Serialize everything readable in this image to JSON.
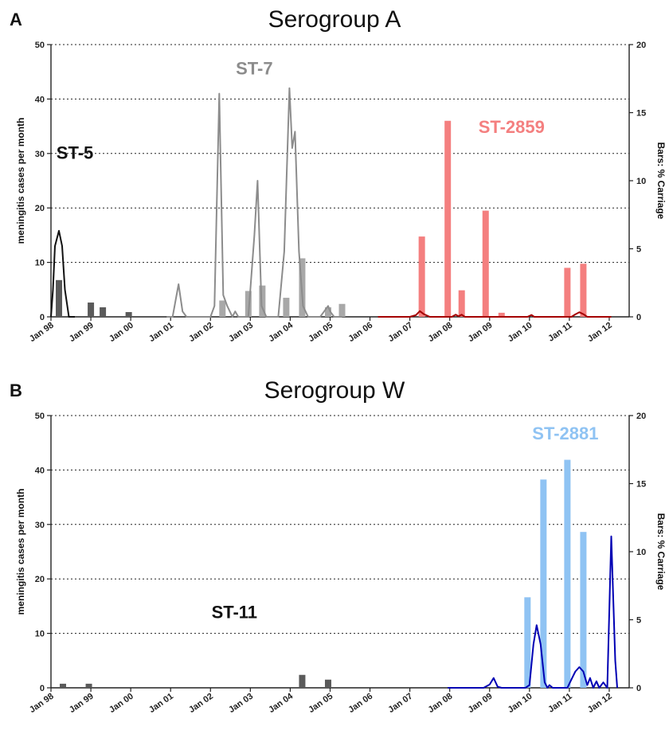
{
  "chart_data": [
    {
      "type": "bar",
      "panel": "A",
      "title": "Serogroup A",
      "ylabel": "meningitis cases per month",
      "y2label": "Bars: % Carriage",
      "ylim": [
        0,
        50
      ],
      "y2lim": [
        0,
        20
      ],
      "yticks": [
        "0",
        "10",
        "20",
        "30",
        "40",
        "50"
      ],
      "y2ticks": [
        "0",
        "5",
        "10",
        "15",
        "20"
      ],
      "xticks": [
        "Jan 98",
        "Jan 99",
        "Jan 00",
        "Jan 01",
        "Jan 02",
        "Jan 03",
        "Jan 04",
        "Jan 05",
        "Jan 06",
        "Jan 07",
        "Jan 08",
        "Jan 09",
        "Jan 10",
        "Jan 11",
        "Jan 12"
      ],
      "grid": true,
      "annotations": [
        {
          "text": "ST-5",
          "x": 1998.6,
          "y": 29,
          "color": "#111111"
        },
        {
          "text": "ST-7",
          "x": 2003.1,
          "y": 44.5,
          "color": "#8c8c8c"
        },
        {
          "text": "ST-2859",
          "x": 2009.55,
          "y": 33.8,
          "color": "#f47f7f"
        }
      ],
      "bars": [
        {
          "x": 1998.2,
          "value": 2.7,
          "color": "#5a5a5a"
        },
        {
          "x": 1999.0,
          "value": 1.05,
          "color": "#5a5a5a"
        },
        {
          "x": 1999.3,
          "value": 0.7,
          "color": "#5a5a5a"
        },
        {
          "x": 1999.95,
          "value": 0.35,
          "color": "#5a5a5a"
        },
        {
          "x": 2002.3,
          "value": 1.2,
          "color": "#a8a8a8"
        },
        {
          "x": 2002.95,
          "value": 1.9,
          "color": "#a8a8a8"
        },
        {
          "x": 2003.3,
          "value": 2.3,
          "color": "#a8a8a8"
        },
        {
          "x": 2003.9,
          "value": 1.4,
          "color": "#a8a8a8"
        },
        {
          "x": 2004.3,
          "value": 4.3,
          "color": "#a8a8a8"
        },
        {
          "x": 2004.95,
          "value": 0.7,
          "color": "#a8a8a8"
        },
        {
          "x": 2005.3,
          "value": 0.95,
          "color": "#a8a8a8"
        },
        {
          "x": 2007.3,
          "value": 5.9,
          "color": "#f47f7f"
        },
        {
          "x": 2007.95,
          "value": 14.4,
          "color": "#f47f7f"
        },
        {
          "x": 2008.3,
          "value": 1.95,
          "color": "#f47f7f"
        },
        {
          "x": 2008.9,
          "value": 7.8,
          "color": "#f47f7f"
        },
        {
          "x": 2009.3,
          "value": 0.3,
          "color": "#f47f7f"
        },
        {
          "x": 2010.95,
          "value": 3.6,
          "color": "#f47f7f"
        },
        {
          "x": 2011.35,
          "value": 3.9,
          "color": "#f47f7f"
        }
      ],
      "series": [
        {
          "color": "#111111",
          "points": [
            [
              1998.0,
              0
            ],
            [
              1998.05,
              5
            ],
            [
              1998.1,
              13
            ],
            [
              1998.2,
              15.8
            ],
            [
              1998.28,
              13
            ],
            [
              1998.35,
              5
            ],
            [
              1998.45,
              0
            ],
            [
              1998.6,
              0
            ]
          ]
        },
        {
          "color": "#8c8c8c",
          "points": [
            [
              2000.9,
              0
            ],
            [
              2001.05,
              0
            ],
            [
              2001.2,
              6
            ],
            [
              2001.3,
              1
            ],
            [
              2001.4,
              0
            ],
            [
              2002.0,
              0
            ],
            [
              2002.1,
              2
            ],
            [
              2002.22,
              41
            ],
            [
              2002.32,
              4
            ],
            [
              2002.42,
              2
            ],
            [
              2002.55,
              0
            ],
            [
              2002.62,
              1
            ],
            [
              2002.7,
              0
            ],
            [
              2002.95,
              0
            ],
            [
              2003.1,
              15
            ],
            [
              2003.18,
              25
            ],
            [
              2003.28,
              2
            ],
            [
              2003.4,
              0
            ],
            [
              2003.7,
              0
            ],
            [
              2003.85,
              12
            ],
            [
              2003.98,
              42
            ],
            [
              2004.05,
              31
            ],
            [
              2004.12,
              34
            ],
            [
              2004.22,
              12
            ],
            [
              2004.32,
              2
            ],
            [
              2004.45,
              0
            ],
            [
              2004.75,
              0
            ],
            [
              2004.85,
              1
            ],
            [
              2004.95,
              2
            ],
            [
              2005.0,
              1
            ],
            [
              2005.1,
              0
            ],
            [
              2005.3,
              0
            ]
          ]
        },
        {
          "color": "#a50000",
          "points": [
            [
              2006.2,
              0
            ],
            [
              2007.0,
              0
            ],
            [
              2007.15,
              0.3
            ],
            [
              2007.25,
              1.05
            ],
            [
              2007.35,
              0.5
            ],
            [
              2007.5,
              0
            ],
            [
              2008.05,
              0
            ],
            [
              2008.15,
              0.4
            ],
            [
              2008.22,
              0.1
            ],
            [
              2008.3,
              0.4
            ],
            [
              2008.38,
              0
            ],
            [
              2009.95,
              0
            ],
            [
              2010.05,
              0.35
            ],
            [
              2010.12,
              0
            ],
            [
              2011.05,
              0
            ],
            [
              2011.15,
              0.45
            ],
            [
              2011.25,
              0.85
            ],
            [
              2011.35,
              0.5
            ],
            [
              2011.45,
              0
            ],
            [
              2012.05,
              0
            ]
          ]
        }
      ]
    },
    {
      "type": "bar",
      "panel": "B",
      "title": "Serogroup W",
      "ylabel": "meningitis cases per month",
      "y2label": "Bars: % Carriage",
      "ylim": [
        0,
        50
      ],
      "y2lim": [
        0,
        20
      ],
      "yticks": [
        "0",
        "10",
        "20",
        "30",
        "40",
        "50"
      ],
      "y2ticks": [
        "0",
        "5",
        "10",
        "15",
        "20"
      ],
      "xticks": [
        "Jan 98",
        "Jan 99",
        "Jan 00",
        "Jan 01",
        "Jan 02",
        "Jan 03",
        "Jan 04",
        "Jan 05",
        "Jan 06",
        "Jan 07",
        "Jan 08",
        "Jan 09",
        "Jan 10",
        "Jan 11",
        "Jan 12"
      ],
      "grid": true,
      "annotations": [
        {
          "text": "ST-2881",
          "x": 2010.9,
          "y": 45.6,
          "color": "#8fc3f3"
        },
        {
          "text": "ST-11",
          "x": 2002.6,
          "y": 12.8,
          "color": "#111111"
        }
      ],
      "bars": [
        {
          "x": 1998.3,
          "value": 0.3,
          "color": "#5a5a5a"
        },
        {
          "x": 1998.95,
          "value": 0.3,
          "color": "#5a5a5a"
        },
        {
          "x": 2004.3,
          "value": 0.95,
          "color": "#5a5a5a"
        },
        {
          "x": 2004.95,
          "value": 0.6,
          "color": "#5a5a5a"
        },
        {
          "x": 2009.95,
          "value": 6.65,
          "color": "#8fc3f3"
        },
        {
          "x": 2010.35,
          "value": 15.3,
          "color": "#8fc3f3"
        },
        {
          "x": 2010.95,
          "value": 16.75,
          "color": "#8fc3f3"
        },
        {
          "x": 2011.35,
          "value": 11.45,
          "color": "#8fc3f3"
        }
      ],
      "series": [
        {
          "color": "#0000b4",
          "points": [
            [
              2007.95,
              0
            ],
            [
              2008.85,
              0
            ],
            [
              2009.0,
              0.6
            ],
            [
              2009.1,
              1.8
            ],
            [
              2009.2,
              0.2
            ],
            [
              2009.3,
              0
            ],
            [
              2009.9,
              0
            ],
            [
              2010.0,
              0.5
            ],
            [
              2010.1,
              8
            ],
            [
              2010.18,
              11.5
            ],
            [
              2010.28,
              8
            ],
            [
              2010.38,
              1
            ],
            [
              2010.45,
              0
            ],
            [
              2010.5,
              0.5
            ],
            [
              2010.58,
              0
            ],
            [
              2010.95,
              0
            ],
            [
              2011.05,
              1.5
            ],
            [
              2011.15,
              3
            ],
            [
              2011.25,
              3.8
            ],
            [
              2011.35,
              3
            ],
            [
              2011.45,
              0.5
            ],
            [
              2011.52,
              1.8
            ],
            [
              2011.6,
              0
            ],
            [
              2011.68,
              1.2
            ],
            [
              2011.75,
              0
            ],
            [
              2011.85,
              1
            ],
            [
              2011.95,
              0
            ],
            [
              2012.05,
              27.8
            ],
            [
              2012.15,
              5
            ],
            [
              2012.2,
              0
            ]
          ]
        }
      ]
    }
  ]
}
